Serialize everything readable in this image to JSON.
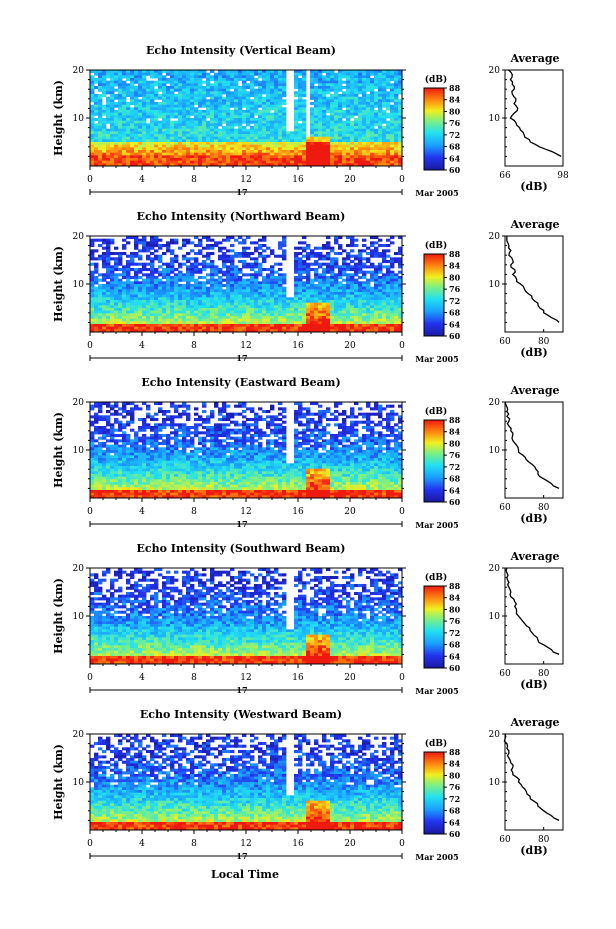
{
  "figure": {
    "shared": {
      "date_label": "17",
      "month_year": "Mar 2005",
      "xlabel_bottom": "Local Time",
      "cbar_unit": "(dB)",
      "avg_title": "Average",
      "avg_xunit": "(dB)",
      "ylabel": "Height (km)"
    }
  },
  "chart_data": [
    {
      "type": "heatmap",
      "title": "Echo Intensity (Vertical Beam)",
      "xlabel": "",
      "ylabel": "Height (km)",
      "x_ticks": [
        "0",
        "4",
        "8",
        "12",
        "16",
        "20",
        "0"
      ],
      "y_ticks": [
        "20",
        "10"
      ],
      "xlim": [
        0,
        24
      ],
      "ylim": [
        0,
        20
      ],
      "colorbar": {
        "label": "(dB)",
        "ticks": [
          "88",
          "84",
          "80",
          "76",
          "72",
          "68",
          "64",
          "60"
        ],
        "range": [
          60,
          88
        ]
      },
      "profile": {
        "title": "Average",
        "xlabel": "(dB)",
        "x_ticks": [
          "66",
          "98"
        ],
        "xlim": [
          66,
          98
        ],
        "y_ticks": [
          "20",
          "10"
        ],
        "heights": [
          2,
          3,
          4,
          5,
          6,
          7,
          8,
          9,
          10,
          11,
          12,
          13,
          14,
          15,
          16,
          17,
          18,
          19,
          20
        ],
        "values": [
          97,
          92,
          85,
          80,
          77,
          76,
          74,
          72,
          69,
          71,
          73,
          71,
          72,
          70,
          71,
          70,
          69,
          70,
          68
        ]
      }
    },
    {
      "type": "heatmap",
      "title": "Echo Intensity (Northward Beam)",
      "xlabel": "",
      "ylabel": "Height (km)",
      "x_ticks": [
        "0",
        "4",
        "8",
        "12",
        "16",
        "20",
        "0"
      ],
      "y_ticks": [
        "20",
        "10"
      ],
      "xlim": [
        0,
        24
      ],
      "ylim": [
        0,
        20
      ],
      "colorbar": {
        "label": "(dB)",
        "ticks": [
          "88",
          "84",
          "80",
          "76",
          "72",
          "68",
          "64",
          "60"
        ],
        "range": [
          60,
          88
        ]
      },
      "profile": {
        "title": "Average",
        "xlabel": "(dB)",
        "x_ticks": [
          "60",
          "80"
        ],
        "xlim": [
          60,
          90
        ],
        "y_ticks": [
          "20",
          "10"
        ],
        "heights": [
          2,
          3,
          4,
          5,
          6,
          7,
          8,
          9,
          10,
          11,
          12,
          13,
          14,
          15,
          16,
          17,
          18,
          19,
          20
        ],
        "values": [
          88,
          84,
          80,
          78,
          77,
          74,
          72,
          70,
          68,
          66,
          64,
          65,
          63,
          64,
          62,
          63,
          62,
          61,
          61
        ]
      }
    },
    {
      "type": "heatmap",
      "title": "Echo Intensity (Eastward Beam)",
      "xlabel": "",
      "ylabel": "Height (km)",
      "x_ticks": [
        "0",
        "4",
        "8",
        "12",
        "16",
        "20",
        "0"
      ],
      "y_ticks": [
        "20",
        "10"
      ],
      "xlim": [
        0,
        24
      ],
      "ylim": [
        0,
        20
      ],
      "colorbar": {
        "label": "(dB)",
        "ticks": [
          "88",
          "84",
          "80",
          "76",
          "72",
          "68",
          "64",
          "60"
        ],
        "range": [
          60,
          88
        ]
      },
      "profile": {
        "title": "Average",
        "xlabel": "(dB)",
        "x_ticks": [
          "60",
          "80"
        ],
        "xlim": [
          60,
          90
        ],
        "y_ticks": [
          "20",
          "10"
        ],
        "heights": [
          2,
          3,
          4,
          5,
          6,
          7,
          8,
          9,
          10,
          11,
          12,
          13,
          14,
          15,
          16,
          17,
          18,
          19,
          20
        ],
        "values": [
          88,
          84,
          80,
          77,
          76,
          74,
          71,
          69,
          67,
          66,
          64,
          64,
          63,
          62,
          62,
          61,
          61,
          61,
          60
        ]
      }
    },
    {
      "type": "heatmap",
      "title": "Echo Intensity (Southward Beam)",
      "xlabel": "",
      "ylabel": "Height (km)",
      "x_ticks": [
        "0",
        "4",
        "8",
        "12",
        "16",
        "20",
        "0"
      ],
      "y_ticks": [
        "20",
        "10"
      ],
      "xlim": [
        0,
        24
      ],
      "ylim": [
        0,
        20
      ],
      "colorbar": {
        "label": "(dB)",
        "ticks": [
          "88",
          "84",
          "80",
          "76",
          "72",
          "68",
          "64",
          "60"
        ],
        "range": [
          60,
          88
        ]
      },
      "profile": {
        "title": "Average",
        "xlabel": "(dB)",
        "x_ticks": [
          "60",
          "80"
        ],
        "xlim": [
          60,
          90
        ],
        "y_ticks": [
          "20",
          "10"
        ],
        "heights": [
          2,
          3,
          4,
          5,
          6,
          7,
          8,
          9,
          10,
          11,
          12,
          13,
          14,
          15,
          16,
          17,
          18,
          19,
          20
        ],
        "values": [
          88,
          84,
          80,
          77,
          75,
          73,
          71,
          69,
          67,
          66,
          65,
          65,
          63,
          63,
          62,
          62,
          61,
          61,
          61
        ]
      }
    },
    {
      "type": "heatmap",
      "title": "Echo Intensity (Westward Beam)",
      "xlabel": "Local Time",
      "ylabel": "Height (km)",
      "x_ticks": [
        "0",
        "4",
        "8",
        "12",
        "16",
        "20",
        "0"
      ],
      "y_ticks": [
        "20",
        "10"
      ],
      "xlim": [
        0,
        24
      ],
      "ylim": [
        0,
        20
      ],
      "colorbar": {
        "label": "(dB)",
        "ticks": [
          "88",
          "84",
          "80",
          "76",
          "72",
          "68",
          "64",
          "60"
        ],
        "range": [
          60,
          88
        ]
      },
      "profile": {
        "title": "Average",
        "xlabel": "(dB)",
        "x_ticks": [
          "60",
          "80"
        ],
        "xlim": [
          60,
          90
        ],
        "y_ticks": [
          "20",
          "10"
        ],
        "heights": [
          2,
          3,
          4,
          5,
          6,
          7,
          8,
          9,
          10,
          11,
          12,
          13,
          14,
          15,
          16,
          17,
          18,
          19,
          20
        ],
        "values": [
          88,
          84,
          80,
          77,
          75,
          73,
          71,
          69,
          67,
          66,
          64,
          64,
          63,
          62,
          62,
          61,
          61,
          60,
          60
        ]
      }
    }
  ]
}
